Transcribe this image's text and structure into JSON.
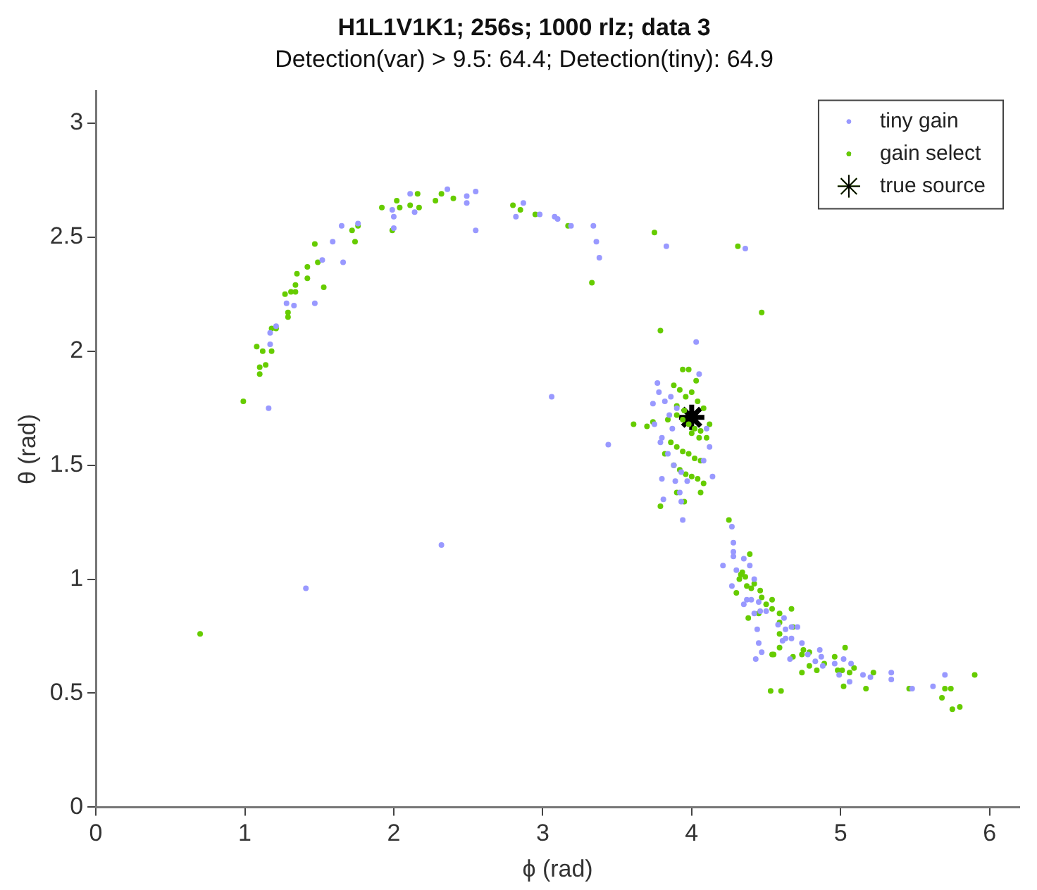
{
  "chart_data": {
    "type": "scatter",
    "title": "H1L1V1K1; 256s; 1000 rlz; data 3",
    "subtitle": "Detection(var) > 9.5: 64.4; Detection(tiny): 64.9",
    "xlabel": "ϕ (rad)",
    "ylabel": "θ (rad)",
    "xlim": [
      0,
      6.2
    ],
    "xticks": [
      0,
      1,
      2,
      3,
      4,
      5,
      6
    ],
    "ylim": [
      0,
      3.14
    ],
    "yticks": [
      0,
      0.5,
      1,
      1.5,
      2,
      2.5,
      3
    ],
    "legend": "top right",
    "marker": "circle",
    "series": [
      {
        "name": "tiny gain",
        "color": "#9999ff",
        "x": [
          1.16,
          1.17,
          1.17,
          1.21,
          1.28,
          1.33,
          1.47,
          1.52,
          1.59,
          1.65,
          1.66,
          1.76,
          1.99,
          2.0,
          2.0,
          2.11,
          2.14,
          2.36,
          2.49,
          2.49,
          2.55,
          2.55,
          2.82,
          2.87,
          2.98,
          3.08,
          3.1,
          3.19,
          3.34,
          3.36,
          3.38,
          3.06,
          3.44,
          3.74,
          3.83,
          4.36,
          4.03,
          3.77,
          1.41,
          2.32,
          3.94,
          3.8,
          3.89,
          3.97,
          3.93,
          4.27,
          4.28,
          4.28,
          4.28,
          4.21,
          4.35,
          4.39,
          4.3,
          4.42,
          4.27,
          4.37,
          4.4,
          4.35,
          4.45,
          4.42,
          4.46,
          4.5,
          4.58,
          4.62,
          4.63,
          4.67,
          4.71,
          4.44,
          4.45,
          4.43,
          4.47,
          4.63,
          4.67,
          4.61,
          4.66,
          4.74,
          4.78,
          4.83,
          4.86,
          4.87,
          4.88,
          4.96,
          5.02,
          4.99,
          5.07,
          5.06,
          5.15,
          5.2,
          5.34,
          5.34,
          5.48,
          5.62,
          5.7,
          3.78,
          3.82,
          3.86,
          3.9,
          3.75,
          3.8,
          3.84,
          3.88,
          3.93,
          4.08,
          4.12,
          4.1,
          3.85,
          3.92,
          3.79,
          4.14,
          4.05,
          3.81,
          3.87
        ],
        "values": [
          1.75,
          2.03,
          2.08,
          2.11,
          2.21,
          2.2,
          2.21,
          2.4,
          2.48,
          2.55,
          2.39,
          2.56,
          2.62,
          2.59,
          2.54,
          2.69,
          2.61,
          2.71,
          2.68,
          2.65,
          2.7,
          2.53,
          2.59,
          2.65,
          2.6,
          2.59,
          2.58,
          2.55,
          2.55,
          2.48,
          2.41,
          1.8,
          1.59,
          1.77,
          2.46,
          2.45,
          2.04,
          1.86,
          0.96,
          1.15,
          1.26,
          1.44,
          1.43,
          1.43,
          1.34,
          1.23,
          1.16,
          1.12,
          1.1,
          1.06,
          1.09,
          1.06,
          1.04,
          1.0,
          0.97,
          0.91,
          0.91,
          0.89,
          0.9,
          0.85,
          0.86,
          0.86,
          0.8,
          0.83,
          0.78,
          0.79,
          0.79,
          0.78,
          0.72,
          0.65,
          0.68,
          0.74,
          0.74,
          0.73,
          0.65,
          0.72,
          0.67,
          0.64,
          0.69,
          0.66,
          0.62,
          0.63,
          0.65,
          0.58,
          0.63,
          0.55,
          0.58,
          0.57,
          0.59,
          0.56,
          0.52,
          0.53,
          0.58,
          1.82,
          1.78,
          1.8,
          1.75,
          1.68,
          1.62,
          1.55,
          1.5,
          1.47,
          1.52,
          1.58,
          1.66,
          1.72,
          1.38,
          1.6,
          1.45,
          1.9,
          1.35,
          1.66
        ]
      },
      {
        "name": "gain select",
        "color": "#66cc00",
        "x": [
          0.99,
          1.08,
          1.1,
          1.1,
          1.12,
          1.18,
          1.14,
          1.18,
          1.21,
          1.27,
          1.29,
          1.29,
          1.31,
          1.34,
          1.34,
          1.35,
          1.42,
          1.42,
          1.47,
          1.49,
          1.53,
          1.72,
          1.76,
          1.74,
          1.92,
          1.99,
          2.02,
          2.04,
          2.11,
          2.16,
          2.17,
          2.28,
          2.32,
          2.4,
          2.8,
          2.85,
          2.95,
          3.17,
          3.33,
          3.75,
          3.61,
          3.7,
          3.74,
          4.31,
          4.47,
          3.79,
          3.94,
          3.98,
          4.03,
          0.7,
          3.79,
          3.9,
          3.95,
          4.06,
          4.25,
          4.39,
          4.32,
          4.34,
          4.36,
          4.33,
          4.37,
          4.4,
          4.3,
          4.42,
          4.46,
          4.47,
          4.5,
          4.54,
          4.45,
          4.38,
          4.54,
          4.59,
          4.59,
          4.67,
          4.68,
          4.59,
          4.59,
          4.54,
          4.55,
          4.68,
          4.74,
          4.74,
          4.75,
          4.79,
          4.79,
          4.84,
          4.89,
          4.96,
          5.03,
          4.98,
          5.01,
          5.02,
          5.06,
          5.09,
          5.17,
          5.22,
          5.46,
          5.7,
          5.74,
          5.68,
          5.75,
          5.8,
          5.9,
          4.53,
          4.6,
          3.88,
          3.92,
          3.96,
          4.0,
          4.04,
          4.08,
          3.9,
          3.94,
          3.98,
          4.02,
          4.06,
          4.1,
          3.86,
          3.9,
          3.94,
          3.98,
          4.02,
          4.06,
          3.88,
          3.92,
          3.96,
          4.0,
          4.04,
          4.08,
          3.9,
          3.95,
          4.0,
          4.05,
          3.84,
          3.82,
          4.12
        ],
        "values": [
          1.78,
          2.02,
          1.93,
          1.9,
          2.0,
          2.0,
          1.94,
          2.1,
          2.1,
          2.25,
          2.15,
          2.17,
          2.26,
          2.26,
          2.29,
          2.34,
          2.37,
          2.32,
          2.47,
          2.39,
          2.28,
          2.53,
          2.55,
          2.48,
          2.63,
          2.53,
          2.66,
          2.63,
          2.64,
          2.69,
          2.63,
          2.66,
          2.69,
          2.67,
          2.64,
          2.62,
          2.6,
          2.55,
          2.3,
          2.52,
          1.68,
          1.67,
          1.69,
          2.46,
          2.17,
          2.09,
          1.92,
          1.92,
          1.87,
          0.76,
          1.32,
          1.38,
          1.34,
          1.38,
          1.26,
          1.11,
          1.0,
          1.03,
          1.01,
          1.02,
          0.97,
          0.96,
          0.94,
          0.98,
          0.95,
          0.92,
          0.89,
          0.91,
          0.85,
          0.83,
          0.87,
          0.85,
          0.81,
          0.87,
          0.79,
          0.76,
          0.7,
          0.67,
          0.67,
          0.66,
          0.67,
          0.59,
          0.69,
          0.68,
          0.62,
          0.6,
          0.63,
          0.66,
          0.7,
          0.6,
          0.6,
          0.53,
          0.59,
          0.61,
          0.52,
          0.59,
          0.52,
          0.52,
          0.52,
          0.48,
          0.43,
          0.44,
          0.58,
          0.51,
          0.51,
          1.85,
          1.83,
          1.8,
          1.82,
          1.78,
          1.75,
          1.72,
          1.7,
          1.68,
          1.66,
          1.65,
          1.62,
          1.6,
          1.58,
          1.56,
          1.55,
          1.53,
          1.52,
          1.5,
          1.48,
          1.46,
          1.45,
          1.44,
          1.42,
          1.76,
          1.74,
          1.64,
          1.62,
          1.7,
          1.55,
          1.68
        ]
      },
      {
        "name": "true source",
        "color": "#000000",
        "marker": "cross",
        "x": [
          4.0
        ],
        "values": [
          1.71
        ]
      }
    ]
  }
}
